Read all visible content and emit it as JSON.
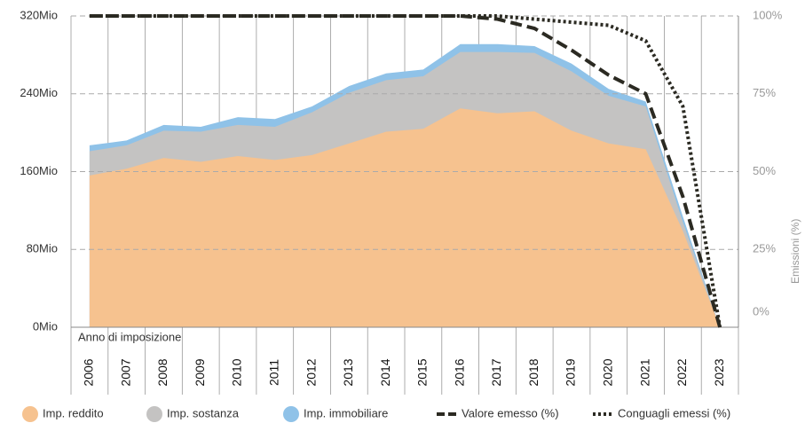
{
  "chart_data": {
    "type": "stacked-area-line",
    "x_label": "Anno di imposizione",
    "y2_label": "Emissioni (%)",
    "categories": [
      "2006",
      "2007",
      "2008",
      "2009",
      "2010",
      "2011",
      "2012",
      "2013",
      "2014",
      "2015",
      "2016",
      "2017",
      "2018",
      "2019",
      "2020",
      "2021",
      "2022",
      "2023"
    ],
    "series": [
      {
        "name": "Imp. reddito",
        "color": "#f6c28f",
        "values": [
          156,
          163,
          174,
          170,
          176,
          172,
          177,
          189,
          201,
          204,
          225,
          220,
          222,
          202,
          189,
          183,
          99,
          0
        ]
      },
      {
        "name": "Imp. sostanza",
        "color": "#c4c3c2",
        "values": [
          25,
          24,
          28,
          31,
          32,
          34,
          44,
          52,
          53,
          54,
          58,
          63,
          60,
          61,
          49,
          44,
          9,
          0
        ]
      },
      {
        "name": "Imp. immobiliare",
        "color": "#8fc2e8",
        "values": [
          6,
          5,
          6,
          5,
          8,
          8,
          6,
          7,
          7,
          7,
          8,
          8,
          7,
          8,
          7,
          5,
          6,
          0
        ]
      },
      {
        "name": "Valore emesso (%)",
        "color": "#2b2a22",
        "axis": "y2",
        "values": [
          100,
          100,
          100,
          100,
          100,
          100,
          100,
          100,
          100,
          100,
          100,
          99,
          96,
          89,
          81,
          75,
          42,
          0
        ]
      },
      {
        "name": "Conguagli emessi (%)",
        "color": "#2b2a22",
        "axis": "y2",
        "values": [
          100,
          100,
          100,
          100,
          100,
          100,
          100,
          100,
          100,
          100,
          100,
          100,
          99,
          98,
          97,
          92,
          71,
          0
        ]
      }
    ],
    "ylim": [
      0,
      320
    ],
    "yticks": [
      {
        "value": 0,
        "label": "0Mio"
      },
      {
        "value": 80,
        "label": "80Mio"
      },
      {
        "value": 160,
        "label": "160Mio"
      },
      {
        "value": 240,
        "label": "240Mio"
      },
      {
        "value": 320,
        "label": "320Mio"
      }
    ],
    "y2lim": [
      0,
      100
    ],
    "y2ticks": [
      {
        "value": 0,
        "label": "0%"
      },
      {
        "value": 25,
        "label": "25%"
      },
      {
        "value": 50,
        "label": "50%"
      },
      {
        "value": 75,
        "label": "75%"
      },
      {
        "value": 100,
        "label": "100%"
      }
    ],
    "grid": true
  }
}
